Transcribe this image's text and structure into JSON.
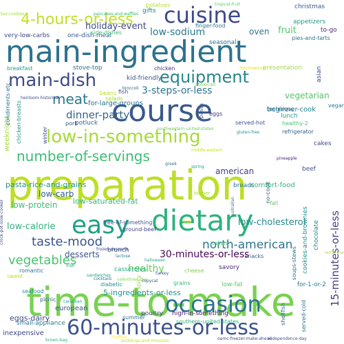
{
  "words": [
    {
      "text": "preparation",
      "color": "#bddf26"
    },
    {
      "text": "time-to-make",
      "color": "#7ad151"
    },
    {
      "text": "course",
      "color": "#38598c"
    },
    {
      "text": "main-ingredient",
      "color": "#2c728e"
    },
    {
      "text": "dietary",
      "color": "#2db27d"
    },
    {
      "text": "easy",
      "color": "#1fa187"
    },
    {
      "text": "occasion",
      "color": "#2c728e"
    },
    {
      "text": "60-minutes-or-less",
      "color": "#3b528b"
    },
    {
      "text": "low-in-something",
      "color": "#a5db36"
    },
    {
      "text": "cuisine",
      "color": "#3e4989"
    },
    {
      "text": "4-hours-or-less",
      "color": "#c2df23"
    },
    {
      "text": "main-dish",
      "color": "#3e4a89"
    },
    {
      "text": "equipment",
      "color": "#25858e"
    },
    {
      "text": "number-of-servings",
      "color": "#3dbc74"
    },
    {
      "text": "meat",
      "color": "#2a788e"
    },
    {
      "text": "vegetables",
      "color": "#4ac16d"
    },
    {
      "text": "taste-mood",
      "color": "#3a548c"
    },
    {
      "text": "north-american",
      "color": "#2a768e"
    },
    {
      "text": "dinner-party",
      "color": "#33638d"
    },
    {
      "text": "3-steps-or-less",
      "color": "#2b748e"
    },
    {
      "text": "30-minutes-or-less",
      "color": "#440154"
    },
    {
      "text": "15-minutes-or-less",
      "color": "#424086"
    },
    {
      "text": "holiday-event",
      "color": "#3e4989"
    },
    {
      "text": "low-sodium",
      "color": "#2a788e"
    },
    {
      "text": "oven",
      "color": "#2a788e"
    },
    {
      "text": "fruit",
      "color": "#50c46a"
    },
    {
      "text": "vegetarian",
      "color": "#52c569"
    },
    {
      "text": "low-carb",
      "color": "#355f8d"
    },
    {
      "text": "low-protein",
      "color": "#3dbc74"
    },
    {
      "text": "low-calorie",
      "color": "#2fb47c"
    },
    {
      "text": "low-cholesterol",
      "color": "#23898e"
    },
    {
      "text": "american",
      "color": "#433e85"
    },
    {
      "text": "desserts",
      "color": "#3a538b"
    },
    {
      "text": "healthy",
      "color": "#6ccd5a"
    },
    {
      "text": "low-saturated-fat",
      "color": "#35b779"
    },
    {
      "text": "pasta-rice-and-grains",
      "color": "#20928c"
    },
    {
      "text": "eggs-dairy",
      "color": "#3f4788"
    },
    {
      "text": "european",
      "color": "#39568c"
    },
    {
      "text": "5-ingredients-or-less",
      "color": "#21918c"
    },
    {
      "text": "for-large-groups",
      "color": "#2e6e8e"
    },
    {
      "text": "beginner-cook",
      "color": "#26828e"
    },
    {
      "text": "comfort-food",
      "color": "#2fb47c"
    },
    {
      "text": "weeknight",
      "color": "#a2da37"
    },
    {
      "text": "inexpensive",
      "color": "#404588"
    },
    {
      "text": "one-dish-meal",
      "color": "#355f8d"
    },
    {
      "text": "side-dishes",
      "color": "#3bbb75"
    },
    {
      "text": "stove-top",
      "color": "#2c728e"
    },
    {
      "text": "kid-friendly",
      "color": "#3b528b"
    },
    {
      "text": "poultry",
      "color": "#414487"
    },
    {
      "text": "summer",
      "color": "#2a778e"
    },
    {
      "text": "brunch",
      "color": "#3a538b"
    },
    {
      "text": "cookies-and-brownies",
      "color": "#238a8d"
    },
    {
      "text": "chocolate",
      "color": "#25848e"
    },
    {
      "text": "lunch",
      "color": "#1fa187"
    },
    {
      "text": "beef",
      "color": "#3b528b"
    },
    {
      "text": "breads",
      "color": "#2c728e"
    },
    {
      "text": "low-fat",
      "color": "#5ec962"
    },
    {
      "text": "for-1-or-2",
      "color": "#287d8e"
    },
    {
      "text": "savory",
      "color": "#482878"
    },
    {
      "text": "seasonal",
      "color": "#2d708e"
    },
    {
      "text": "appetizers",
      "color": "#1f9a8a"
    },
    {
      "text": "gifts",
      "color": "#26828e"
    },
    {
      "text": "christmas",
      "color": "#3b528b"
    },
    {
      "text": "to-go",
      "color": "#482576"
    },
    {
      "text": "pies-and-tarts",
      "color": "#2d708e"
    },
    {
      "text": "very-low-carbs",
      "color": "#3e4989"
    },
    {
      "text": "finger-food",
      "color": "#2a788e"
    },
    {
      "text": "potatoes",
      "color": "#b5de2b"
    },
    {
      "text": "breakfast",
      "color": "#1f9e89"
    },
    {
      "text": "presentation",
      "color": "#9fda3a"
    },
    {
      "text": "chicken",
      "color": "#46337e"
    },
    {
      "text": "technique",
      "color": "#355f8d"
    },
    {
      "text": "healthy-2",
      "color": "#4ac16d"
    },
    {
      "text": "refrigerator",
      "color": "#33638d"
    },
    {
      "text": "served-hot",
      "color": "#3b528b"
    },
    {
      "text": "cakes",
      "color": "#3e4989"
    },
    {
      "text": "potluck",
      "color": "#31688e"
    },
    {
      "text": "salads",
      "color": "#a0da39"
    },
    {
      "text": "beans",
      "color": "#b8de29"
    },
    {
      "text": "fish",
      "color": "#3a548c"
    },
    {
      "text": "pork",
      "color": "#3b528b"
    },
    {
      "text": "winter",
      "color": "#414487"
    },
    {
      "text": "condiments-etc",
      "color": "#2c728e"
    },
    {
      "text": "chicken-breasts",
      "color": "#1f9a8a"
    },
    {
      "text": "casseroles",
      "color": "#27ad81"
    },
    {
      "text": "cheese",
      "color": "#7fd34e"
    },
    {
      "text": "snacks",
      "color": "#33638d"
    },
    {
      "text": "spicy",
      "color": "#9bd93c"
    },
    {
      "text": "seafood",
      "color": "#21918c"
    },
    {
      "text": "served-cold",
      "color": "#2a768e"
    },
    {
      "text": "soups-stews",
      "color": "#2e6e8e"
    },
    {
      "text": "shellfish",
      "color": "#2e6f8e"
    },
    {
      "text": "romantic",
      "color": "#2c728e"
    },
    {
      "text": "grains",
      "color": "#35b779"
    },
    {
      "text": "free-of-something",
      "color": "#3a548c"
    },
    {
      "text": "ground-beef",
      "color": "#3f4788"
    },
    {
      "text": "italian",
      "color": "#4ac16d"
    },
    {
      "text": "diabetic",
      "color": "#20928c"
    },
    {
      "text": "high-in-something",
      "color": "#482173"
    },
    {
      "text": "southern-united-states",
      "color": "#2db27d"
    },
    {
      "text": "small-appliance",
      "color": "#2a788e"
    },
    {
      "text": "sweet",
      "color": "#c0df25"
    },
    {
      "text": "picnic",
      "color": "#365c8d"
    },
    {
      "text": "no-cook",
      "color": "#38598c"
    },
    {
      "text": "kosher",
      "color": "#a8db34"
    },
    {
      "text": "mexican",
      "color": "#7ad151"
    },
    {
      "text": "asian",
      "color": "#3f4788"
    },
    {
      "text": "vegan",
      "color": "#2a788e"
    },
    {
      "text": "fall",
      "color": "#5ec962"
    },
    {
      "text": "eggs",
      "color": "#46337e"
    },
    {
      "text": "pasta",
      "color": "#3b528b"
    },
    {
      "text": "microwave",
      "color": "#e5e419"
    },
    {
      "text": "heirloom-historical",
      "color": "#3e4989"
    },
    {
      "text": "pancakes-and-waffles",
      "color": "#35b779"
    },
    {
      "text": "bar-cookies",
      "color": "#9fda3a"
    },
    {
      "text": "tropical-fruit",
      "color": "#5ec962"
    },
    {
      "text": "gluten-free",
      "color": "#21918c"
    },
    {
      "text": "crock-pot-slow-cooker",
      "color": "#3e4989"
    },
    {
      "text": "southwestern-united-states",
      "color": "#6ccd5a"
    },
    {
      "text": "independence-day",
      "color": "#3b528b"
    },
    {
      "text": "valentines-day",
      "color": "#7fd34e"
    },
    {
      "text": "middle-eastern",
      "color": "#c8e020"
    },
    {
      "text": "pineapple",
      "color": "#482475"
    },
    {
      "text": "broccoli",
      "color": "#355f8d"
    },
    {
      "text": "australian",
      "color": "#2a788e"
    },
    {
      "text": "greek",
      "color": "#2c728e"
    },
    {
      "text": "dips",
      "color": "#fde725"
    },
    {
      "text": "spring",
      "color": "#1fa187"
    },
    {
      "text": "irish",
      "color": "#22a884"
    },
    {
      "text": "frozen-desserts",
      "color": "#3e4989"
    },
    {
      "text": "lactose",
      "color": "#287c8e"
    },
    {
      "text": "cocktails",
      "color": "#2a788e"
    },
    {
      "text": "turkey",
      "color": "#3b528b"
    },
    {
      "text": "sandwiches",
      "color": "#1f9e89"
    },
    {
      "text": "halloween",
      "color": "#22a884"
    },
    {
      "text": "puddings-and-mousses",
      "color": "#c0df25"
    },
    {
      "text": "lamb-sheep",
      "color": "#b5de2b"
    },
    {
      "text": "muffins",
      "color": "#fde725"
    },
    {
      "text": "oamc-freezer-make-ahead",
      "color": "#3e4989"
    },
    {
      "text": "brown-bag",
      "color": "#2db27d"
    },
    {
      "text": "canadian",
      "color": "#1f9e89"
    },
    {
      "text": "copycat",
      "color": "#38598c"
    }
  ]
}
